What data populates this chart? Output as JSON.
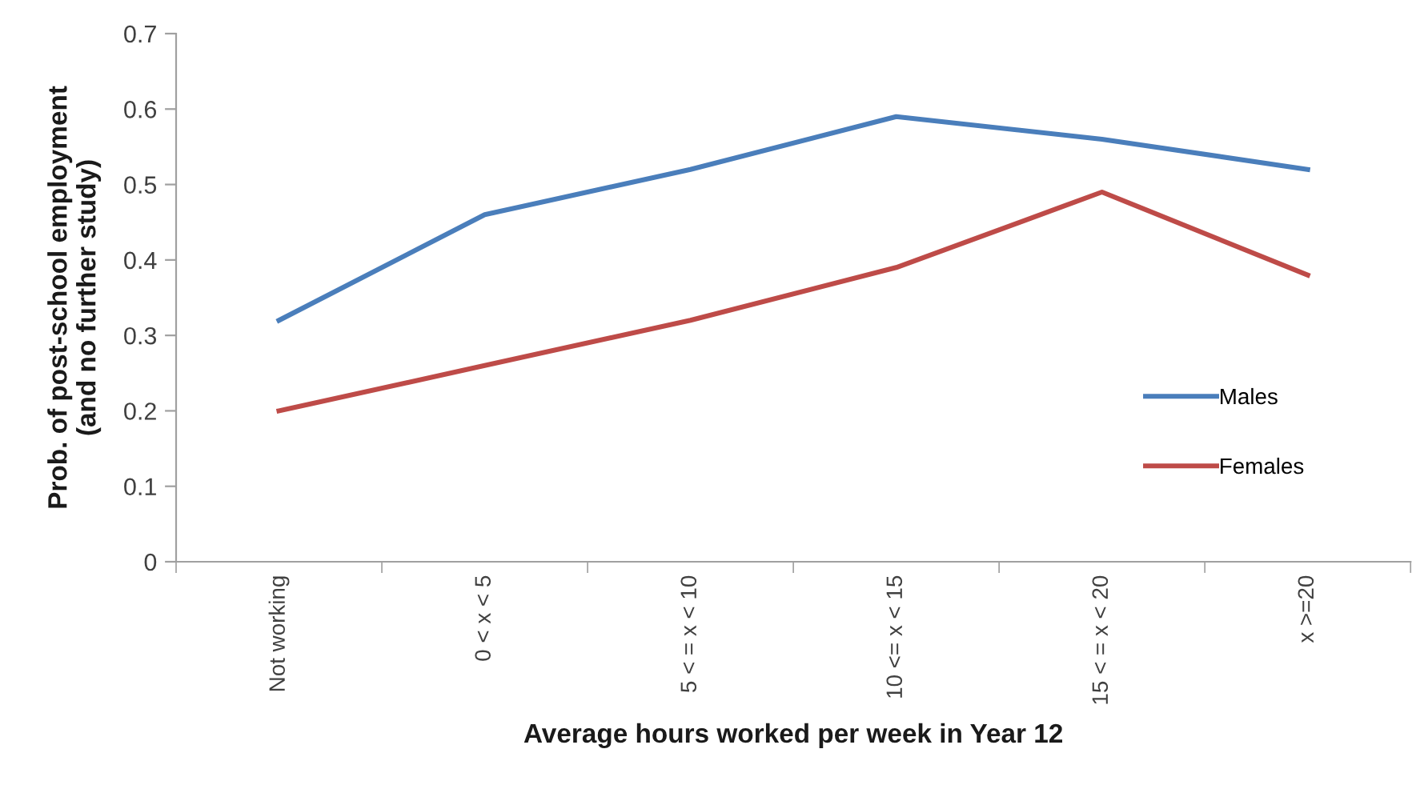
{
  "chart_data": {
    "type": "line",
    "xlabel": "Average hours worked per week in Year 12",
    "ylabel": "Prob. of post-school employment\n(and no further study)",
    "categories": [
      "Not working",
      "0 < x < 5",
      "5 < = x < 10",
      "10 <= x < 15",
      "15 < = x < 20",
      "x >=20"
    ],
    "series": [
      {
        "name": "Males",
        "color": "#4a7ebb",
        "values": [
          0.32,
          0.46,
          0.52,
          0.59,
          0.56,
          0.52
        ]
      },
      {
        "name": "Females",
        "color": "#be4b48",
        "values": [
          0.2,
          0.26,
          0.32,
          0.39,
          0.49,
          0.38
        ]
      }
    ],
    "ylim": [
      0,
      0.7
    ],
    "yticks": [
      0,
      0.1,
      0.2,
      0.3,
      0.4,
      0.5,
      0.6,
      0.7
    ],
    "grid": false,
    "legend": "lower right",
    "marker": "none",
    "line_style": "solid"
  }
}
